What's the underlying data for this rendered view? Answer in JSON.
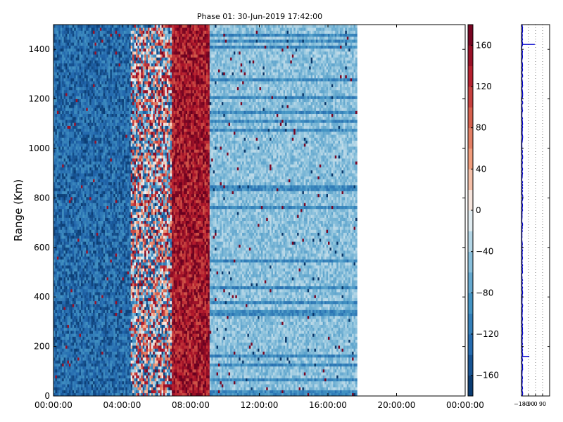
{
  "chart_data": [
    {
      "type": "heatmap",
      "title": "Phase 01: 30-Jun-2019 17:42:00",
      "ylabel": "Range (Km)",
      "xlabel": "",
      "x_ticks": [
        "00:00:00",
        "04:00:00",
        "08:00:00",
        "12:00:00",
        "16:00:00",
        "20:00:00",
        "00:00:00"
      ],
      "x_range_hours": [
        0,
        24
      ],
      "data_extent_hours": [
        0,
        17.7
      ],
      "y_ticks": [
        0,
        200,
        400,
        600,
        800,
        1000,
        1200,
        1400
      ],
      "ylim": [
        0,
        1500
      ],
      "colorbar": {
        "colormap": "RdBu_r",
        "clim": [
          -180,
          180
        ],
        "ticks": [
          -160,
          -120,
          -80,
          -40,
          0,
          40,
          80,
          120,
          160
        ]
      },
      "bands": [
        {
          "from_hours": 0.0,
          "to_hours": 4.5,
          "typical_phase": -130,
          "note": "mostly blue"
        },
        {
          "from_hours": 4.5,
          "to_hours": 6.8,
          "typical_phase": 0,
          "note": "noisy mixed"
        },
        {
          "from_hours": 6.8,
          "to_hours": 9.0,
          "typical_phase": 140,
          "note": "strong red"
        },
        {
          "from_hours": 9.0,
          "to_hours": 17.7,
          "typical_phase": -60,
          "note": "light blue, banded rows"
        }
      ]
    },
    {
      "type": "line",
      "xlim": [
        -180,
        180
      ],
      "x_ticks": [
        "-180",
        "-90",
        "0",
        "90"
      ],
      "ylim": [
        0,
        1500
      ],
      "series": [
        {
          "color": "#0000cc",
          "typical_x": -170,
          "spikes": [
            {
              "range_km": 1420,
              "x": -10
            },
            {
              "range_km": 160,
              "x": -80
            }
          ]
        }
      ]
    }
  ]
}
